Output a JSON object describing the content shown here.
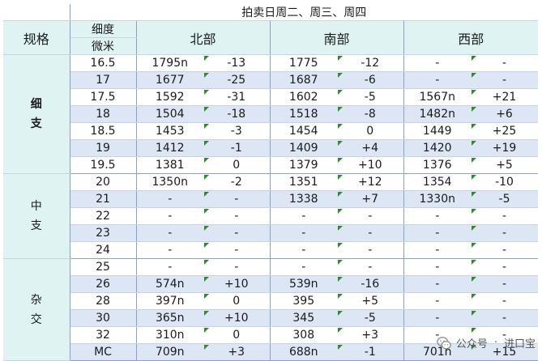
{
  "title": "拍卖日周二、周三、周四",
  "header": {
    "spec": "规格",
    "fineness_line1": "细度",
    "fineness_line2": "微米",
    "north": "北部",
    "south": "南部",
    "west": "西部"
  },
  "groups": [
    {
      "label_line1": "细",
      "label_line2": "支",
      "rows": [
        {
          "micron": "16.5",
          "north_price": "1795n",
          "north_change": "-13",
          "south_price": "1775",
          "south_change": "-12",
          "west_price": "-",
          "west_change": "-"
        },
        {
          "micron": "17",
          "north_price": "1677",
          "north_change": "-25",
          "south_price": "1687",
          "south_change": "-6",
          "west_price": "-",
          "west_change": "-"
        },
        {
          "micron": "17.5",
          "north_price": "1592",
          "north_change": "-31",
          "south_price": "1602",
          "south_change": "-5",
          "west_price": "1567n",
          "west_change": "+21"
        },
        {
          "micron": "18",
          "north_price": "1504",
          "north_change": "-18",
          "south_price": "1518",
          "south_change": "-8",
          "west_price": "1482n",
          "west_change": "+6"
        },
        {
          "micron": "18.5",
          "north_price": "1453",
          "north_change": "-3",
          "south_price": "1454",
          "south_change": "0",
          "west_price": "1449",
          "west_change": "+25"
        },
        {
          "micron": "19",
          "north_price": "1412",
          "north_change": "-1",
          "south_price": "1409",
          "south_change": "+4",
          "west_price": "1420",
          "west_change": "+19"
        },
        {
          "micron": "19.5",
          "north_price": "1381",
          "north_change": "0",
          "south_price": "1379",
          "south_change": "+10",
          "west_price": "1376",
          "west_change": "+5"
        }
      ]
    },
    {
      "label_line1": "中",
      "label_line2": "支",
      "rows": [
        {
          "micron": "20",
          "north_price": "1350n",
          "north_change": "-2",
          "south_price": "1351",
          "south_change": "+12",
          "west_price": "1354",
          "west_change": "-10"
        },
        {
          "micron": "21",
          "north_price": "-",
          "north_change": "-",
          "south_price": "1338",
          "south_change": "+7",
          "west_price": "1330n",
          "west_change": "-5"
        },
        {
          "micron": "22",
          "north_price": "-",
          "north_change": "-",
          "south_price": "-",
          "south_change": "-",
          "west_price": "-",
          "west_change": "-"
        },
        {
          "micron": "23",
          "north_price": "-",
          "north_change": "-",
          "south_price": "-",
          "south_change": "-",
          "west_price": "-",
          "west_change": "-"
        },
        {
          "micron": "24",
          "north_price": "-",
          "north_change": "-",
          "south_price": "-",
          "south_change": "-",
          "west_price": "-",
          "west_change": "-"
        }
      ]
    },
    {
      "label_line1": "杂",
      "label_line2": "交",
      "rows": [
        {
          "micron": "25",
          "north_price": "-",
          "north_change": "-",
          "south_price": "-",
          "south_change": "-",
          "west_price": "-",
          "west_change": "-"
        },
        {
          "micron": "26",
          "north_price": "574n",
          "north_change": "+10",
          "south_price": "539n",
          "south_change": "-16",
          "west_price": "-",
          "west_change": "-"
        },
        {
          "micron": "28",
          "north_price": "397n",
          "north_change": "0",
          "south_price": "395",
          "south_change": "+5",
          "west_price": "-",
          "west_change": "-"
        },
        {
          "micron": "30",
          "north_price": "365n",
          "north_change": "+10",
          "south_price": "345",
          "south_change": "-5",
          "west_price": "-",
          "west_change": "-"
        },
        {
          "micron": "32",
          "north_price": "310n",
          "north_change": "0",
          "south_price": "308",
          "south_change": "+3",
          "west_price": "-",
          "west_change": "-"
        },
        {
          "micron": "MC",
          "north_price": "709n",
          "north_change": "+3",
          "south_price": "688n",
          "south_change": "-1",
          "west_price": "701n",
          "west_change": "+15"
        }
      ]
    }
  ],
  "watermark": {
    "label": "公众号",
    "separator": "·",
    "account": "进口宝"
  },
  "colors": {
    "header_bg": "#dff4f2",
    "stripe_bg": "#dde6f5",
    "border": "#8aa0c8",
    "marker": "#2e8b2e",
    "group_label": "#1e2d6b"
  }
}
